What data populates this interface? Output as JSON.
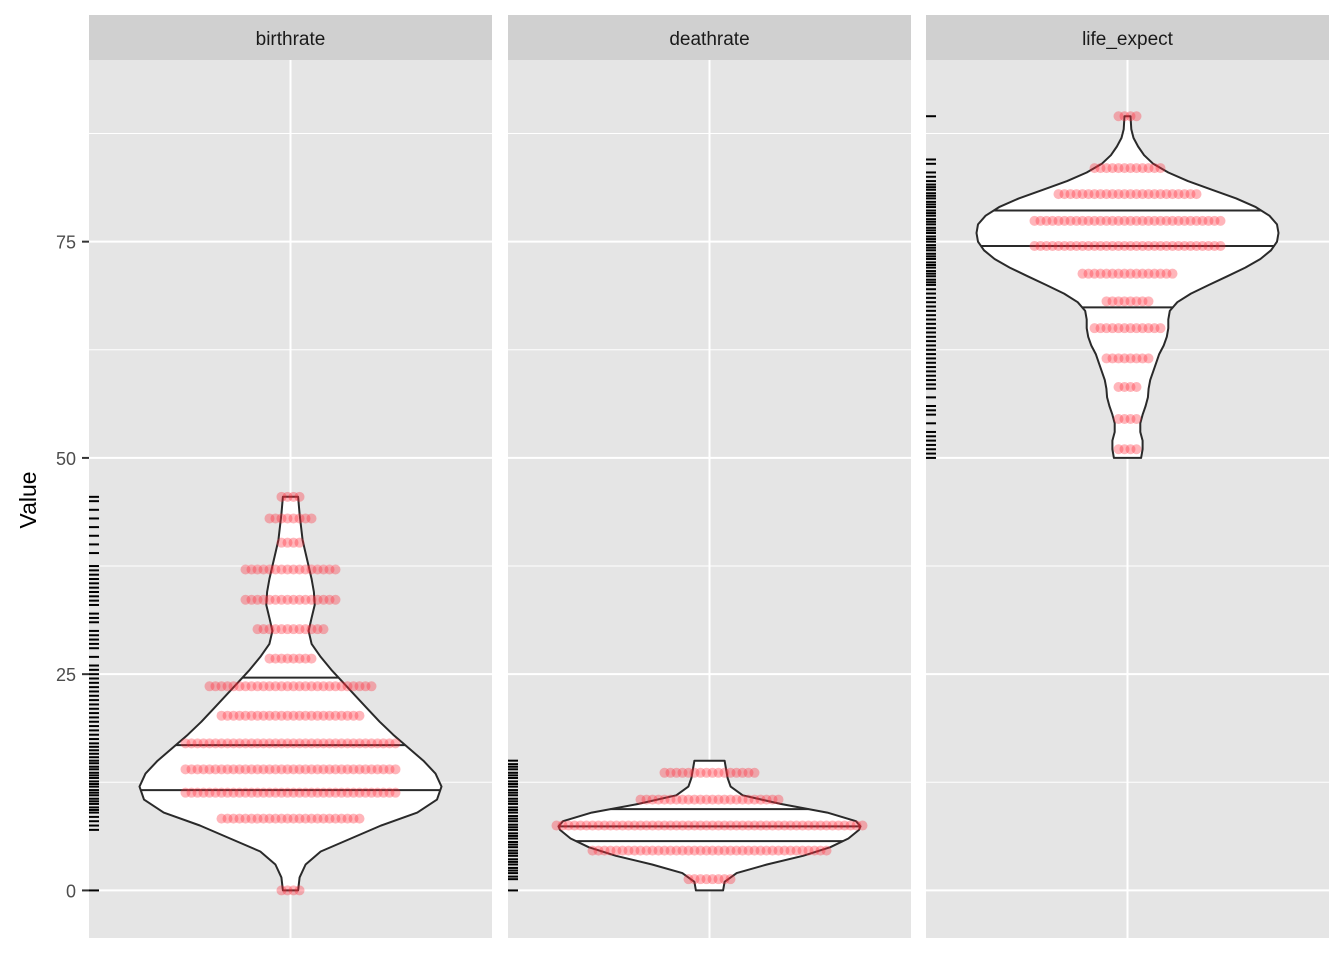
{
  "chart_data": {
    "type": "violin",
    "ylabel": "Value",
    "y_ticks": [
      0,
      25,
      50,
      75
    ],
    "ylim": [
      -5.5,
      96
    ],
    "grid": true,
    "colors": {
      "panel_bg": "#e5e5e5",
      "strip_bg": "#d0d0d0",
      "grid": "#ffffff",
      "violin_fill": "#ffffff",
      "violin_stroke": "#2a2a2a",
      "points": "#ff2a3a",
      "rug": "#000000"
    },
    "facets": [
      {
        "label": "birthrate",
        "range": [
          0,
          45.5
        ],
        "quantiles": [
          11.6,
          16.8,
          24.6
        ],
        "density": [
          [
            0,
            0.05
          ],
          [
            1.5,
            0.06
          ],
          [
            3,
            0.1
          ],
          [
            4.5,
            0.2
          ],
          [
            6,
            0.4
          ],
          [
            7.5,
            0.6
          ],
          [
            9,
            0.84
          ],
          [
            10.5,
            0.97
          ],
          [
            12,
            1.0
          ],
          [
            13.5,
            0.96
          ],
          [
            15,
            0.88
          ],
          [
            16.5,
            0.78
          ],
          [
            18,
            0.68
          ],
          [
            19.5,
            0.59
          ],
          [
            21,
            0.51
          ],
          [
            22.5,
            0.43
          ],
          [
            24,
            0.35
          ],
          [
            25.5,
            0.27
          ],
          [
            27,
            0.2
          ],
          [
            28.5,
            0.14
          ],
          [
            30,
            0.12
          ],
          [
            31.5,
            0.14
          ],
          [
            33,
            0.16
          ],
          [
            34.5,
            0.155
          ],
          [
            36,
            0.14
          ],
          [
            37.5,
            0.12
          ],
          [
            39,
            0.1
          ],
          [
            40.5,
            0.08
          ],
          [
            42,
            0.07
          ],
          [
            43.5,
            0.06
          ],
          [
            45.5,
            0.05
          ]
        ],
        "points": [
          [
            0,
            1
          ],
          [
            8.3,
            6
          ],
          [
            11.3,
            9
          ],
          [
            14,
            9
          ],
          [
            17,
            9
          ],
          [
            20.2,
            6
          ],
          [
            23.6,
            7
          ],
          [
            26.8,
            2
          ],
          [
            30.2,
            3
          ],
          [
            33.6,
            4
          ],
          [
            37.1,
            4
          ],
          [
            40.2,
            1
          ],
          [
            43,
            2
          ],
          [
            45.5,
            1
          ]
        ],
        "rug": [
          0,
          7,
          7.5,
          8,
          8.5,
          9,
          9.3,
          9.6,
          10,
          10.3,
          10.6,
          11,
          11.3,
          11.6,
          12,
          12.3,
          12.6,
          13,
          13.3,
          13.6,
          14,
          14.3,
          14.7,
          15,
          15.4,
          15.8,
          16.2,
          16.6,
          17,
          17.5,
          18,
          18.5,
          19,
          19.5,
          20,
          20.5,
          21,
          21.5,
          22,
          22.5,
          23,
          23.5,
          24,
          24.5,
          25,
          25.5,
          26,
          27,
          28,
          28.5,
          29,
          29.5,
          30,
          31,
          31.5,
          32,
          33,
          33.5,
          34,
          34.5,
          35,
          35.5,
          36,
          36.5,
          37,
          37.5,
          39,
          40,
          41,
          42,
          43,
          44,
          45,
          45.5
        ]
      },
      {
        "label": "deathrate",
        "range": [
          0,
          15
        ],
        "quantiles": [
          5.7,
          7.4,
          9.4
        ],
        "density": [
          [
            0,
            0.09
          ],
          [
            1,
            0.1
          ],
          [
            2,
            0.18
          ],
          [
            3,
            0.38
          ],
          [
            4,
            0.62
          ],
          [
            5,
            0.8
          ],
          [
            6,
            0.92
          ],
          [
            7,
            0.99
          ],
          [
            7.4,
            1.0
          ],
          [
            8,
            0.97
          ],
          [
            9,
            0.78
          ],
          [
            10,
            0.47
          ],
          [
            11,
            0.22
          ],
          [
            12,
            0.14
          ],
          [
            13,
            0.12
          ],
          [
            14,
            0.11
          ],
          [
            15,
            0.1
          ]
        ],
        "points": [
          [
            1.3,
            2
          ],
          [
            4.6,
            10
          ],
          [
            7.5,
            13
          ],
          [
            10.5,
            6
          ],
          [
            13.6,
            4
          ]
        ],
        "rug": [
          0,
          1.3,
          1.6,
          2,
          2.3,
          2.6,
          3,
          3.3,
          3.6,
          4,
          4.3,
          4.6,
          5,
          5.3,
          5.6,
          6,
          6.3,
          6.6,
          7,
          7.3,
          7.6,
          8,
          8.3,
          8.6,
          9,
          9.3,
          9.6,
          10,
          10.3,
          10.6,
          11,
          11.3,
          11.6,
          12,
          12.3,
          12.6,
          13,
          13.3,
          13.6,
          14,
          14.3,
          14.6,
          15
        ]
      },
      {
        "label": "life_expect",
        "range": [
          50,
          89.5
        ],
        "quantiles": [
          67.4,
          74.5,
          78.6
        ],
        "density": [
          [
            50,
            0.09
          ],
          [
            51,
            0.1
          ],
          [
            52,
            0.1
          ],
          [
            53,
            0.085
          ],
          [
            54,
            0.085
          ],
          [
            55,
            0.1
          ],
          [
            56,
            0.12
          ],
          [
            57,
            0.135
          ],
          [
            58,
            0.14
          ],
          [
            59,
            0.15
          ],
          [
            60,
            0.17
          ],
          [
            61,
            0.19
          ],
          [
            62,
            0.21
          ],
          [
            63,
            0.24
          ],
          [
            64,
            0.26
          ],
          [
            65,
            0.27
          ],
          [
            66,
            0.27
          ],
          [
            67,
            0.28
          ],
          [
            68,
            0.33
          ],
          [
            69,
            0.42
          ],
          [
            70,
            0.54
          ],
          [
            71,
            0.66
          ],
          [
            72,
            0.78
          ],
          [
            73,
            0.88
          ],
          [
            74,
            0.95
          ],
          [
            75,
            0.99
          ],
          [
            76,
            1.0
          ],
          [
            77,
            0.99
          ],
          [
            78,
            0.94
          ],
          [
            79,
            0.85
          ],
          [
            80,
            0.72
          ],
          [
            81,
            0.56
          ],
          [
            82,
            0.4
          ],
          [
            83,
            0.27
          ],
          [
            84,
            0.17
          ],
          [
            85,
            0.11
          ],
          [
            86,
            0.07
          ],
          [
            87,
            0.04
          ],
          [
            88,
            0.025
          ],
          [
            89.5,
            0.02
          ]
        ],
        "points": [
          [
            51,
            1
          ],
          [
            54.5,
            1
          ],
          [
            58.2,
            1
          ],
          [
            61.5,
            2
          ],
          [
            65,
            3
          ],
          [
            68.1,
            2
          ],
          [
            71.3,
            4
          ],
          [
            74.5,
            8
          ],
          [
            77.4,
            8
          ],
          [
            80.5,
            6
          ],
          [
            83.5,
            3
          ],
          [
            89.5,
            1
          ]
        ],
        "rug": [
          50,
          50.5,
          51,
          51.5,
          52,
          52.5,
          53,
          54,
          55,
          55.5,
          56,
          57,
          58,
          58.5,
          59,
          59.5,
          60,
          60.5,
          61,
          61.5,
          62,
          62.5,
          63,
          63.5,
          64,
          64.5,
          65,
          65.5,
          66,
          66.5,
          67,
          67.5,
          68,
          68.5,
          69,
          69.5,
          70,
          70.3,
          70.6,
          71,
          71.3,
          71.6,
          72,
          72.3,
          72.6,
          73,
          73.3,
          73.6,
          74,
          74.3,
          74.6,
          75,
          75.3,
          75.6,
          76,
          76.3,
          76.6,
          77,
          77.3,
          77.6,
          78,
          78.3,
          78.6,
          79,
          79.3,
          79.6,
          80,
          80.3,
          80.6,
          81,
          81.3,
          81.6,
          82,
          82.5,
          83,
          84,
          84.5,
          89.5
        ]
      }
    ]
  }
}
